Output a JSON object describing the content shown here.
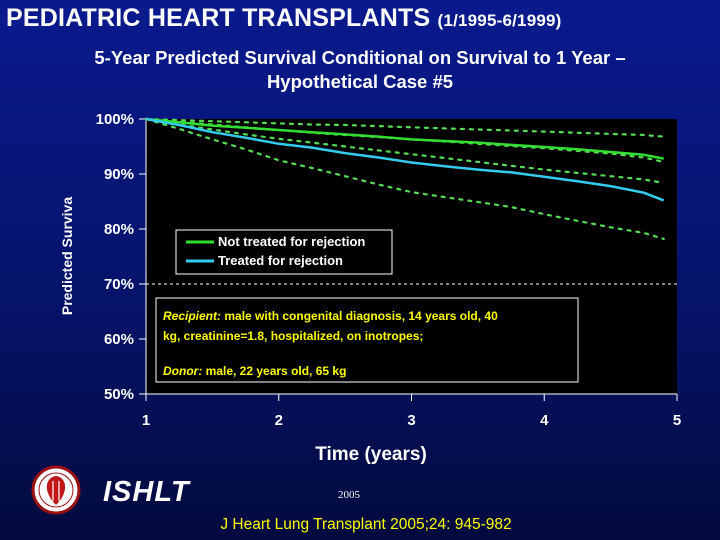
{
  "header": {
    "title": "PEDIATRIC HEART TRANSPLANTS",
    "date_range": "(1/1995-6/1999)",
    "subtitle_line1": "5-Year Predicted Survival Conditional on Survival to 1 Year –",
    "subtitle_line2": "Hypothetical Case #5"
  },
  "chart_data": {
    "type": "line",
    "xlabel": "Time (years)",
    "ylabel": "Predicted Surviva",
    "xlim": [
      1,
      5
    ],
    "ylim": [
      50,
      100
    ],
    "x_ticks": [
      "1",
      "2",
      "3",
      "4",
      "5"
    ],
    "y_ticks": [
      "50%",
      "60%",
      "70%",
      "80%",
      "90%",
      "100%"
    ],
    "reference_line": 70,
    "legend": {
      "placement": "center-left"
    },
    "series": [
      {
        "name": "Not treated for rejection",
        "color": "#33dd33",
        "x": [
          1,
          1.25,
          1.5,
          1.75,
          2,
          2.25,
          2.5,
          2.75,
          3,
          3.25,
          3.5,
          3.75,
          4,
          4.25,
          4.5,
          4.75,
          4.9
        ],
        "y": [
          100,
          99.4,
          98.8,
          98.4,
          98,
          97.6,
          97.2,
          96.8,
          96.3,
          96,
          95.7,
          95.3,
          94.9,
          94.5,
          94,
          93.5,
          92.8
        ],
        "lower": [
          100,
          99,
          98.1,
          97.2,
          96.4,
          95.7,
          95,
          94.3,
          93.6,
          92.9,
          92.2,
          91.5,
          90.8,
          90.2,
          89.6,
          89,
          88.4
        ],
        "upper": [
          100,
          99.8,
          99.6,
          99.4,
          99.2,
          99,
          98.9,
          98.7,
          98.5,
          98.3,
          98.1,
          97.9,
          97.7,
          97.5,
          97.3,
          97.1,
          96.8
        ]
      },
      {
        "name": "Treated for rejection",
        "color": "#33ccee",
        "x": [
          1,
          1.25,
          1.5,
          1.75,
          2,
          2.25,
          2.5,
          2.75,
          3,
          3.25,
          3.5,
          3.75,
          4,
          4.25,
          4.5,
          4.75,
          4.9
        ],
        "y": [
          100,
          98.9,
          97.6,
          96.6,
          95.5,
          94.8,
          93.8,
          93,
          92.1,
          91.4,
          90.8,
          90.3,
          89.5,
          88.7,
          87.8,
          86.6,
          85.2
        ],
        "lower": [
          100,
          98.2,
          96.3,
          94.5,
          92.5,
          91.1,
          89.6,
          88.1,
          86.7,
          85.8,
          84.9,
          84,
          82.7,
          81.5,
          80.3,
          79.3,
          78.2
        ],
        "upper": [
          100,
          99.5,
          99,
          98.5,
          98,
          97.5,
          97.1,
          96.7,
          96.3,
          95.9,
          95.5,
          95.1,
          94.7,
          94.2,
          93.7,
          93,
          92.2
        ]
      }
    ]
  },
  "note": {
    "recipient_label": "Recipient:",
    "recipient_text_1": " male with congenital diagnosis, 14 years old, 40",
    "recipient_text_2": "kg, creatinine=1.8, hospitalized, on inotropes;",
    "donor_label": "Donor:",
    "donor_text": " male, 22 years old, 65 kg"
  },
  "footer": {
    "logo_text": "ISHLT",
    "year": "2005",
    "citation": "J Heart Lung Transplant 2005;24: 945-982"
  },
  "colors": {
    "background": "#0a1a8e",
    "plot_area": "#000000",
    "note_text": "#ffff00",
    "confidence_band": "#55dd55"
  }
}
